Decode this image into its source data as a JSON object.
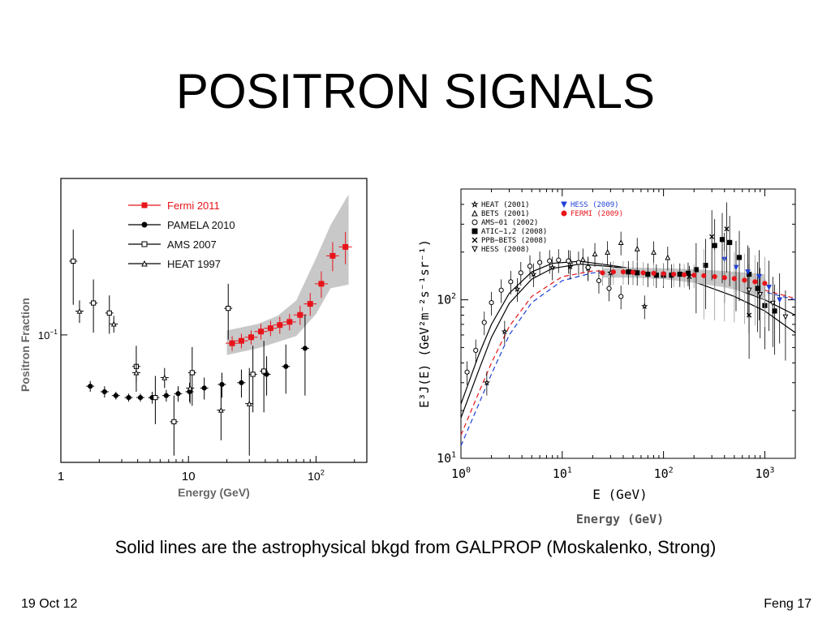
{
  "slide": {
    "title": "POSITRON SIGNALS",
    "caption": "Solid lines are the astrophysical bkgd from GALPROP (Moskalenko, Strong)",
    "date": "19 Oct 12",
    "page": "Feng 17"
  },
  "colors": {
    "fermi": "#e8141b",
    "hess2009": "#1f3fd8",
    "band": "#c8c8c8"
  },
  "chart_data": [
    {
      "type": "scatter",
      "scale": "log-log",
      "xlabel": "Energy (GeV)",
      "ylabel": "Positron Fraction",
      "xlim": [
        1,
        250
      ],
      "ylim": [
        0.033,
        0.39
      ],
      "xticks": [
        {
          "v": 1,
          "t": "1"
        },
        {
          "v": 10,
          "t": "10"
        }
      ],
      "xticks_pow": [
        {
          "v": 100,
          "base": "10",
          "exp": "2"
        }
      ],
      "yticks_pow": [
        {
          "v": 0.1,
          "base": "10",
          "exp": "−1"
        }
      ],
      "legend_position": "top-left",
      "series": [
        {
          "name": "Fermi 2011",
          "marker": "filled-square",
          "color": "#e8141b",
          "x": [
            22,
            26,
            31,
            37,
            44,
            52,
            62,
            75,
            90,
            110,
            135,
            170
          ],
          "y": [
            0.093,
            0.095,
            0.098,
            0.103,
            0.106,
            0.109,
            0.112,
            0.119,
            0.131,
            0.156,
            0.199,
            0.215
          ],
          "err": [
            0.006,
            0.006,
            0.006,
            0.007,
            0.007,
            0.008,
            0.008,
            0.01,
            0.013,
            0.018,
            0.025,
            0.03
          ],
          "band": {
            "x": [
              20,
              35,
              50,
              70,
              100,
              130,
              180
            ],
            "lo": [
              0.084,
              0.089,
              0.094,
              0.099,
              0.12,
              0.15,
              0.155
            ],
            "hi": [
              0.104,
              0.11,
              0.118,
              0.135,
              0.195,
              0.26,
              0.34
            ]
          }
        },
        {
          "name": "PAMELA 2010",
          "marker": "filled-circle",
          "color": "#000000",
          "x": [
            1.7,
            2.2,
            2.7,
            3.4,
            4.2,
            5.2,
            6.7,
            8.3,
            10.2,
            13.3,
            18.3,
            26,
            41,
            58,
            82
          ],
          "y": [
            0.064,
            0.061,
            0.059,
            0.058,
            0.058,
            0.058,
            0.059,
            0.06,
            0.061,
            0.063,
            0.065,
            0.066,
            0.071,
            0.076,
            0.089
          ],
          "err": [
            0.003,
            0.003,
            0.002,
            0.002,
            0.002,
            0.003,
            0.003,
            0.004,
            0.005,
            0.006,
            0.007,
            0.008,
            0.012,
            0.016,
            0.03
          ]
        },
        {
          "name": "AMS 2007",
          "marker": "open-square",
          "color": "#000000",
          "x": [
            1.25,
            1.8,
            2.4,
            3.9,
            5.5,
            7.7,
            10.7,
            20.5,
            32,
            39
          ],
          "y": [
            0.19,
            0.132,
            0.121,
            0.076,
            0.058,
            0.047,
            0.072,
            0.126,
            0.071,
            0.073
          ],
          "err": [
            0.06,
            0.03,
            0.02,
            0.015,
            0.012,
            0.012,
            0.018,
            0.03,
            0.02,
            0.022
          ]
        },
        {
          "name": "HEAT 1997",
          "marker": "open-triangle",
          "color": "#000000",
          "x": [
            1.4,
            2.6,
            3.9,
            6.5,
            10.3,
            18,
            30
          ],
          "y": [
            0.123,
            0.11,
            0.072,
            0.069,
            0.063,
            0.052,
            0.055
          ],
          "err": [
            0.012,
            0.008,
            0.006,
            0.006,
            0.008,
            0.012,
            0.02
          ]
        }
      ]
    },
    {
      "type": "scatter",
      "scale": "log-log",
      "xlabel": "E (GeV)",
      "xlabel_extra": "Energy (GeV)",
      "ylabel": "E³J(E) (GeV²m⁻²s⁻¹sr⁻¹)",
      "xlim": [
        1,
        2000
      ],
      "ylim": [
        10,
        500
      ],
      "xticks_pow": [
        {
          "v": 1,
          "base": "10",
          "exp": "0"
        },
        {
          "v": 10,
          "base": "10",
          "exp": "1"
        },
        {
          "v": 100,
          "base": "10",
          "exp": "2"
        },
        {
          "v": 1000,
          "base": "10",
          "exp": "3"
        }
      ],
      "yticks_pow": [
        {
          "v": 10,
          "base": "10",
          "exp": "1"
        },
        {
          "v": 100,
          "base": "10",
          "exp": "2"
        }
      ],
      "legend_position": "top-left",
      "series": [
        {
          "name": "HEAT (2001)",
          "marker": "open-star",
          "color": "#000000",
          "x": [
            1.8,
            2.7,
            3.6,
            5.2,
            8,
            12,
            18,
            30,
            65
          ],
          "y": [
            30,
            63,
            117,
            145,
            160,
            162,
            158,
            148,
            91
          ]
        },
        {
          "name": "BETS (2001)",
          "marker": "open-triangle",
          "color": "#000000",
          "x": [
            12,
            16,
            21,
            28,
            38,
            55,
            80,
            110
          ],
          "y": [
            175,
            180,
            195,
            200,
            230,
            210,
            200,
            185
          ]
        },
        {
          "name": "AMS−01 (2002)",
          "marker": "open-circle",
          "color": "#000000",
          "x": [
            1.15,
            1.4,
            1.7,
            2.0,
            2.5,
            3.1,
            3.9,
            4.8,
            6,
            7.5,
            9.2,
            11.5,
            14.5,
            18,
            23,
            29,
            38
          ],
          "y": [
            35,
            48,
            72,
            96,
            115,
            130,
            148,
            163,
            172,
            176,
            178,
            176,
            172,
            160,
            132,
            118,
            105
          ]
        },
        {
          "name": "ATIC−1,2 (2008)",
          "marker": "filled-square",
          "color": "#000000",
          "x": [
            45,
            55,
            70,
            85,
            100,
            120,
            145,
            175,
            210,
            260,
            320,
            380,
            450,
            560,
            700,
            850,
            1000,
            1250
          ],
          "y": [
            150,
            148,
            145,
            143,
            143,
            143,
            145,
            147,
            155,
            165,
            220,
            240,
            230,
            185,
            145,
            118,
            92,
            85
          ]
        },
        {
          "name": "PPB−BETS (2008)",
          "marker": "cross",
          "color": "#000000",
          "x": [
            50,
            100,
            180,
            300,
            420,
            700
          ],
          "y": [
            150,
            145,
            140,
            250,
            280,
            80
          ]
        },
        {
          "name": "HESS (2008)",
          "marker": "open-down-triangle",
          "color": "#000000",
          "x": [
            700,
            900,
            1200,
            1600
          ],
          "y": [
            115,
            108,
            95,
            78
          ]
        },
        {
          "name": "HESS (2009)",
          "marker": "filled-down-triangle",
          "color": "#1f3fd8",
          "x": [
            400,
            520,
            680,
            880,
            1100,
            1400
          ],
          "y": [
            180,
            160,
            150,
            140,
            120,
            100
          ]
        },
        {
          "name": "FERMI (2009)",
          "marker": "filled-circle",
          "color": "#e8141b",
          "x": [
            25,
            32,
            40,
            50,
            63,
            80,
            100,
            126,
            160,
            200,
            250,
            320,
            400,
            500,
            630,
            800,
            1000
          ],
          "y": [
            148,
            150,
            150,
            149,
            148,
            147,
            146,
            145,
            144,
            143,
            142,
            140,
            138,
            136,
            133,
            130,
            127
          ],
          "band": {
            "x": [
              25,
              50,
              100,
              200,
              400,
              700,
              1000
            ],
            "lo": [
              138,
              138,
              135,
              128,
              120,
              110,
              100
            ],
            "hi": [
              158,
              160,
              158,
              156,
              152,
              148,
              145
            ]
          }
        }
      ]
    }
  ]
}
